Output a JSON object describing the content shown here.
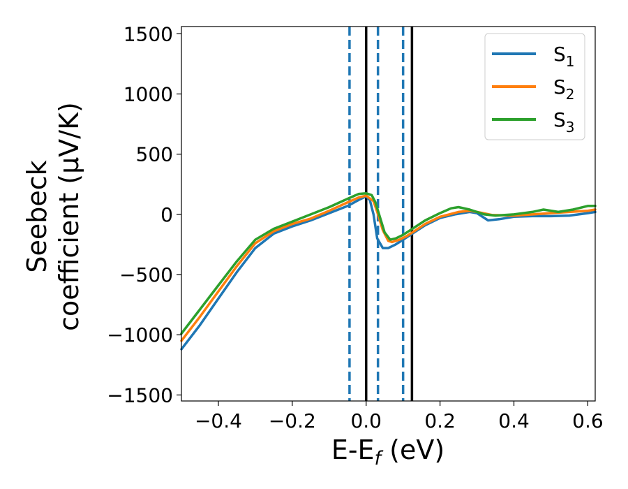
{
  "chart_data": {
    "type": "line",
    "title": "",
    "xlabel": "E-E_f (eV)",
    "xlabel_main": "E-E",
    "xlabel_sub": "f",
    "xlabel_unit": " (eV)",
    "ylabel_line1": "Seebeck",
    "ylabel_line2": "coefficient  (μV/K)",
    "xlim": [
      -0.5,
      0.62
    ],
    "ylim": [
      -1550,
      1560
    ],
    "xticks": [
      -0.4,
      -0.2,
      0.0,
      0.2,
      0.4,
      0.6
    ],
    "xtick_labels": [
      "−0.4",
      "−0.2",
      "0.0",
      "0.2",
      "0.4",
      "0.6"
    ],
    "yticks": [
      -1500,
      -1000,
      -500,
      0,
      500,
      1000,
      1500
    ],
    "ytick_labels": [
      "−1500",
      "−1000",
      "−500",
      "0",
      "500",
      "1000",
      "1500"
    ],
    "grid": false,
    "legend_position": "top-right",
    "vlines": [
      {
        "x": -0.045,
        "style": "dashed",
        "color": "#1f77b4"
      },
      {
        "x": 0.0,
        "style": "solid",
        "color": "#000000"
      },
      {
        "x": 0.032,
        "style": "dashed",
        "color": "#1f77b4"
      },
      {
        "x": 0.1,
        "style": "dashed",
        "color": "#1f77b4"
      },
      {
        "x": 0.124,
        "style": "solid",
        "color": "#000000"
      }
    ],
    "series": [
      {
        "name": "S_1",
        "label_main": "S",
        "label_sub": "1",
        "color": "#1f77b4",
        "points": [
          [
            -0.5,
            -1120
          ],
          [
            -0.45,
            -920
          ],
          [
            -0.4,
            -700
          ],
          [
            -0.35,
            -480
          ],
          [
            -0.3,
            -280
          ],
          [
            -0.25,
            -160
          ],
          [
            -0.2,
            -100
          ],
          [
            -0.15,
            -50
          ],
          [
            -0.1,
            10
          ],
          [
            -0.05,
            70
          ],
          [
            -0.02,
            120
          ],
          [
            0.0,
            150
          ],
          [
            0.01,
            120
          ],
          [
            0.02,
            0
          ],
          [
            0.03,
            -200
          ],
          [
            0.045,
            -280
          ],
          [
            0.06,
            -280
          ],
          [
            0.08,
            -250
          ],
          [
            0.1,
            -210
          ],
          [
            0.13,
            -150
          ],
          [
            0.16,
            -90
          ],
          [
            0.2,
            -30
          ],
          [
            0.24,
            0
          ],
          [
            0.28,
            20
          ],
          [
            0.3,
            10
          ],
          [
            0.33,
            -50
          ],
          [
            0.36,
            -40
          ],
          [
            0.4,
            -20
          ],
          [
            0.45,
            -15
          ],
          [
            0.5,
            -15
          ],
          [
            0.55,
            -10
          ],
          [
            0.6,
            10
          ],
          [
            0.62,
            20
          ]
        ]
      },
      {
        "name": "S_2",
        "label_main": "S",
        "label_sub": "2",
        "color": "#ff7f0e",
        "points": [
          [
            -0.5,
            -1050
          ],
          [
            -0.45,
            -850
          ],
          [
            -0.4,
            -640
          ],
          [
            -0.35,
            -430
          ],
          [
            -0.3,
            -240
          ],
          [
            -0.25,
            -140
          ],
          [
            -0.2,
            -80
          ],
          [
            -0.15,
            -35
          ],
          [
            -0.1,
            30
          ],
          [
            -0.05,
            100
          ],
          [
            -0.02,
            140
          ],
          [
            0.0,
            155
          ],
          [
            0.02,
            110
          ],
          [
            0.03,
            20
          ],
          [
            0.045,
            -130
          ],
          [
            0.06,
            -220
          ],
          [
            0.07,
            -230
          ],
          [
            0.09,
            -210
          ],
          [
            0.11,
            -180
          ],
          [
            0.13,
            -140
          ],
          [
            0.16,
            -80
          ],
          [
            0.2,
            -20
          ],
          [
            0.25,
            20
          ],
          [
            0.28,
            30
          ],
          [
            0.3,
            20
          ],
          [
            0.34,
            -5
          ],
          [
            0.4,
            -10
          ],
          [
            0.45,
            0
          ],
          [
            0.5,
            10
          ],
          [
            0.55,
            20
          ],
          [
            0.6,
            30
          ],
          [
            0.62,
            40
          ]
        ]
      },
      {
        "name": "S_3",
        "label_main": "S",
        "label_sub": "3",
        "color": "#2ca02c",
        "points": [
          [
            -0.5,
            -990
          ],
          [
            -0.45,
            -790
          ],
          [
            -0.4,
            -590
          ],
          [
            -0.35,
            -390
          ],
          [
            -0.3,
            -210
          ],
          [
            -0.25,
            -120
          ],
          [
            -0.2,
            -60
          ],
          [
            -0.15,
            0
          ],
          [
            -0.1,
            60
          ],
          [
            -0.05,
            130
          ],
          [
            -0.02,
            170
          ],
          [
            0.0,
            175
          ],
          [
            0.015,
            160
          ],
          [
            0.025,
            100
          ],
          [
            0.035,
            0
          ],
          [
            0.05,
            -150
          ],
          [
            0.065,
            -210
          ],
          [
            0.08,
            -200
          ],
          [
            0.1,
            -170
          ],
          [
            0.13,
            -110
          ],
          [
            0.16,
            -50
          ],
          [
            0.2,
            10
          ],
          [
            0.23,
            50
          ],
          [
            0.25,
            60
          ],
          [
            0.28,
            40
          ],
          [
            0.32,
            0
          ],
          [
            0.35,
            -10
          ],
          [
            0.4,
            0
          ],
          [
            0.45,
            20
          ],
          [
            0.48,
            40
          ],
          [
            0.52,
            20
          ],
          [
            0.56,
            40
          ],
          [
            0.6,
            70
          ],
          [
            0.62,
            70
          ]
        ]
      }
    ]
  }
}
